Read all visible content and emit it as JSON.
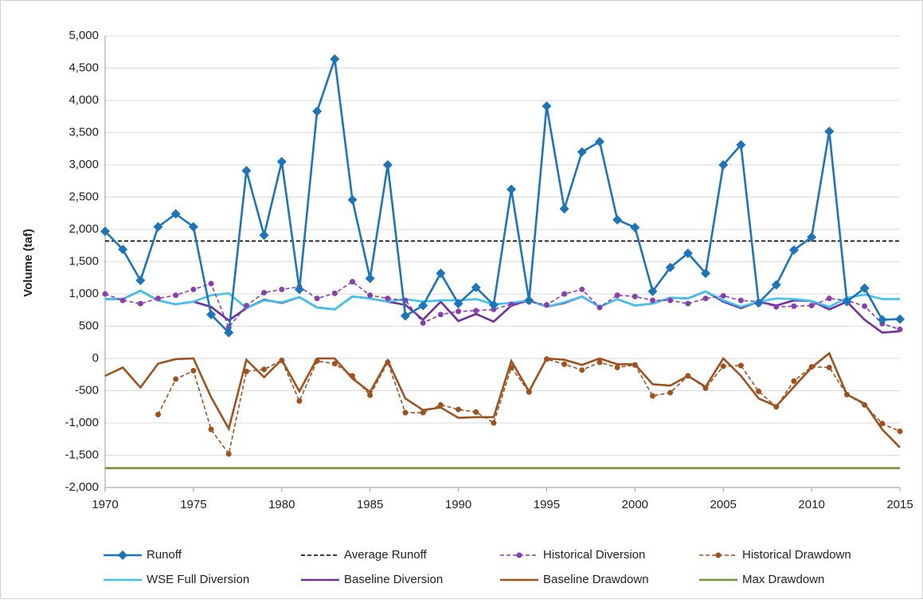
{
  "chart_data": {
    "type": "line",
    "y_label": "Volume (taf)",
    "x": [
      1970,
      1971,
      1972,
      1973,
      1974,
      1975,
      1976,
      1977,
      1978,
      1979,
      1980,
      1981,
      1982,
      1983,
      1984,
      1985,
      1986,
      1987,
      1988,
      1989,
      1990,
      1991,
      1992,
      1993,
      1994,
      1995,
      1996,
      1997,
      1998,
      1999,
      2000,
      2001,
      2002,
      2003,
      2004,
      2005,
      2006,
      2007,
      2008,
      2009,
      2010,
      2011,
      2012,
      2013,
      2014,
      2015
    ],
    "xlim": [
      1970,
      2015
    ],
    "xticks": [
      1970,
      1975,
      1980,
      1985,
      1990,
      1995,
      2000,
      2005,
      2010,
      2015
    ],
    "ylim": [
      -2000,
      5000
    ],
    "yticks": [
      {
        "value": -2000,
        "label": "-2,000"
      },
      {
        "value": -1500,
        "label": "-1,500"
      },
      {
        "value": -1000,
        "label": "-1,000"
      },
      -500,
      0,
      500,
      {
        "value": 1000,
        "label": "1,000"
      },
      {
        "value": 1500,
        "label": "1,500"
      },
      {
        "value": 2000,
        "label": "2,000"
      },
      {
        "value": 2500,
        "label": "2,500"
      },
      {
        "value": 3000,
        "label": "3,000"
      },
      {
        "value": 3500,
        "label": "3,500"
      },
      {
        "value": 4000,
        "label": "4,000"
      },
      {
        "value": 4500,
        "label": "4,500"
      },
      {
        "value": 5000,
        "label": "5,000"
      }
    ],
    "grid": true,
    "series": [
      {
        "name": "Runoff",
        "color": "#1b75bb",
        "dash": false,
        "marker": "diamond",
        "values": [
          1970,
          1690,
          1210,
          2040,
          2240,
          2040,
          680,
          400,
          2910,
          1910,
          3050,
          1070,
          3830,
          4640,
          2460,
          1240,
          3000,
          660,
          820,
          1320,
          850,
          1100,
          830,
          2620,
          900,
          3910,
          2320,
          3200,
          3360,
          2150,
          2030,
          1040,
          1410,
          1630,
          1320,
          3000,
          3310,
          860,
          1140,
          1680,
          1880,
          3520,
          880,
          1090,
          600,
          610
        ]
      },
      {
        "name": "Average Runoff",
        "color": "#000000",
        "dash": true,
        "marker": null,
        "values": [
          1820,
          1820,
          1820,
          1820,
          1820,
          1820,
          1820,
          1820,
          1820,
          1820,
          1820,
          1820,
          1820,
          1820,
          1820,
          1820,
          1820,
          1820,
          1820,
          1820,
          1820,
          1820,
          1820,
          1820,
          1820,
          1820,
          1820,
          1820,
          1820,
          1820,
          1820,
          1820,
          1820,
          1820,
          1820,
          1820,
          1820,
          1820,
          1820,
          1820,
          1820,
          1820,
          1820,
          1820,
          1820,
          1820
        ]
      },
      {
        "name": "Historical Diversion",
        "color": "#8a3fb0",
        "dash": true,
        "marker": "circle",
        "values": [
          1000,
          900,
          850,
          930,
          980,
          1070,
          1160,
          480,
          820,
          1020,
          1070,
          1110,
          930,
          1010,
          1190,
          980,
          930,
          900,
          550,
          680,
          730,
          740,
          760,
          840,
          880,
          830,
          1000,
          1070,
          790,
          980,
          960,
          900,
          900,
          850,
          930,
          970,
          900,
          880,
          800,
          810,
          820,
          930,
          900,
          810,
          540,
          450
        ]
      },
      {
        "name": "Historical Drawdown",
        "color": "#a0521e",
        "dash": true,
        "marker": "circle",
        "values": [
          null,
          null,
          null,
          -870,
          -320,
          -190,
          -1100,
          -1480,
          -200,
          -170,
          -30,
          -660,
          -40,
          -80,
          -270,
          -570,
          -60,
          -840,
          -840,
          -720,
          -790,
          -830,
          -1000,
          -140,
          -520,
          -10,
          -90,
          -180,
          -60,
          -140,
          -100,
          -580,
          -530,
          -270,
          -460,
          -120,
          -110,
          -510,
          -750,
          -350,
          -130,
          -140,
          -560,
          -720,
          -1010,
          -1130
        ]
      },
      {
        "name": "WSE Full Diversion",
        "color": "#3cc3ef",
        "dash": false,
        "marker": null,
        "values": [
          920,
          920,
          1050,
          900,
          840,
          880,
          980,
          1010,
          780,
          900,
          870,
          950,
          790,
          760,
          960,
          930,
          880,
          920,
          880,
          900,
          900,
          920,
          840,
          860,
          900,
          800,
          870,
          960,
          800,
          920,
          820,
          850,
          940,
          930,
          1040,
          900,
          800,
          880,
          930,
          920,
          890,
          800,
          940,
          990,
          920,
          920
        ]
      },
      {
        "name": "Baseline Diversion",
        "color": "#7030a0",
        "dash": false,
        "marker": null,
        "values": [
          920,
          920,
          1050,
          900,
          840,
          880,
          800,
          590,
          780,
          910,
          860,
          950,
          790,
          760,
          960,
          930,
          880,
          830,
          600,
          880,
          580,
          690,
          570,
          820,
          900,
          800,
          860,
          960,
          800,
          920,
          820,
          850,
          940,
          930,
          1040,
          880,
          780,
          880,
          820,
          900,
          890,
          760,
          880,
          600,
          400,
          420
        ]
      },
      {
        "name": "Baseline Drawdown",
        "color": "#a0521e",
        "dash": false,
        "marker": null,
        "values": [
          -270,
          -140,
          -450,
          -80,
          -10,
          0,
          -600,
          -1090,
          -20,
          -290,
          -20,
          -510,
          0,
          0,
          -310,
          -520,
          -30,
          -620,
          -800,
          -760,
          -920,
          -910,
          -910,
          -40,
          -510,
          0,
          -20,
          -100,
          0,
          -90,
          -90,
          -400,
          -420,
          -270,
          -440,
          0,
          -270,
          -620,
          -740,
          -440,
          -140,
          80,
          -560,
          -700,
          -1100,
          -1380
        ]
      },
      {
        "name": "Max Drawdown",
        "color": "#77933c",
        "dash": false,
        "marker": null,
        "values": [
          -1700,
          -1700,
          -1700,
          -1700,
          -1700,
          -1700,
          -1700,
          -1700,
          -1700,
          -1700,
          -1700,
          -1700,
          -1700,
          -1700,
          -1700,
          -1700,
          -1700,
          -1700,
          -1700,
          -1700,
          -1700,
          -1700,
          -1700,
          -1700,
          -1700,
          -1700,
          -1700,
          -1700,
          -1700,
          -1700,
          -1700,
          -1700,
          -1700,
          -1700,
          -1700,
          -1700,
          -1700,
          -1700,
          -1700,
          -1700,
          -1700,
          -1700,
          -1700,
          -1700,
          -1700,
          -1700
        ]
      }
    ]
  }
}
